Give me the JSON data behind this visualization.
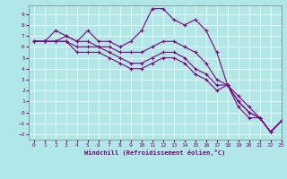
{
  "title": "",
  "xlabel": "Windchill (Refroidissement éolien,°C)",
  "ylabel": "",
  "background_color": "#b0e8e8",
  "grid_color": "#ffffff",
  "line_color": "#800080",
  "xlim": [
    -0.5,
    23
  ],
  "ylim": [
    -2.5,
    9.8
  ],
  "yticks": [
    -2,
    -1,
    0,
    1,
    2,
    3,
    4,
    5,
    6,
    7,
    8,
    9
  ],
  "xticks": [
    0,
    1,
    2,
    3,
    4,
    5,
    6,
    7,
    8,
    9,
    10,
    11,
    12,
    13,
    14,
    15,
    16,
    17,
    18,
    19,
    20,
    21,
    22,
    23
  ],
  "lines": [
    [
      6.5,
      6.5,
      7.5,
      7.0,
      6.5,
      7.5,
      6.5,
      6.5,
      6.0,
      6.5,
      7.5,
      9.5,
      9.5,
      8.5,
      8.0,
      8.5,
      7.5,
      5.5,
      2.5,
      1.0,
      0.0,
      -0.5,
      -1.8,
      -0.8
    ],
    [
      6.5,
      6.5,
      6.5,
      7.0,
      6.5,
      6.5,
      6.0,
      6.0,
      5.5,
      5.5,
      5.5,
      6.0,
      6.5,
      6.5,
      6.0,
      5.5,
      4.5,
      3.0,
      2.5,
      1.5,
      0.5,
      -0.5,
      -1.8,
      -0.8
    ],
    [
      6.5,
      6.5,
      6.5,
      6.5,
      6.0,
      6.0,
      6.0,
      5.5,
      5.0,
      4.5,
      4.5,
      5.0,
      5.5,
      5.5,
      5.0,
      4.0,
      3.5,
      2.5,
      2.5,
      1.0,
      0.0,
      -0.5,
      -1.8,
      -0.8
    ],
    [
      6.5,
      6.5,
      6.5,
      6.5,
      5.5,
      5.5,
      5.5,
      5.0,
      4.5,
      4.0,
      4.0,
      4.5,
      5.0,
      5.0,
      4.5,
      3.5,
      3.0,
      2.0,
      2.5,
      0.5,
      -0.5,
      -0.5,
      -1.8,
      -0.8
    ]
  ]
}
